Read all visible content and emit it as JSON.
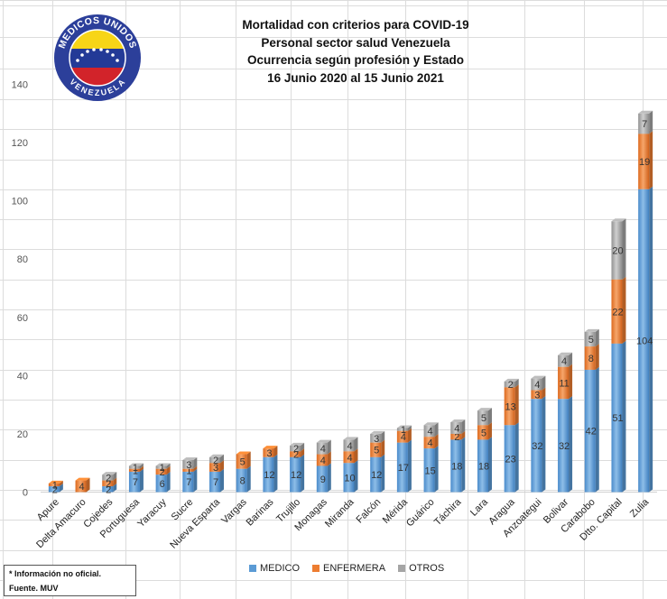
{
  "title_lines": [
    "Mortalidad con criterios para COVID-19",
    "Personal sector salud Venezuela",
    "Ocurrencia según profesión y Estado",
    "16 Junio 2020 al 15 Junio 2021"
  ],
  "logo": {
    "top_text": "MEDICOS UNIDOS",
    "bottom_text": "VENEZUELA"
  },
  "notes": {
    "line1": "* Información no oficial.",
    "line2": "Fuente. MUV"
  },
  "colors": {
    "medico": "#5B9BD5",
    "enfermera": "#ED7D31",
    "otros": "#A5A5A5"
  },
  "chart_data": {
    "type": "bar",
    "stacked": true,
    "categories": [
      "Apure",
      "Delta Amacuro",
      "Cojedes",
      "Portuguesa",
      "Yaracuy",
      "Sucre",
      "Nueva Esparta",
      "Vargas",
      "Barinas",
      "Trujillo",
      "Monagas",
      "Miranda",
      "Falcón",
      "Mérida",
      "Guárico",
      "Táchira",
      "Lara",
      "Aragua",
      "Anzoategui",
      "Bolivar",
      "Carabobo",
      "Dtto. Capital",
      "Zulia"
    ],
    "series": [
      {
        "name": "MEDICO",
        "values": [
          2,
          0,
          2,
          7,
          6,
          7,
          7,
          8,
          12,
          12,
          9,
          10,
          12,
          17,
          15,
          18,
          18,
          23,
          32,
          32,
          42,
          51,
          104
        ]
      },
      {
        "name": "ENFERMERA",
        "values": [
          1,
          4,
          2,
          1,
          2,
          1,
          3,
          5,
          3,
          2,
          4,
          4,
          5,
          4,
          4,
          2,
          5,
          13,
          3,
          11,
          8,
          22,
          19
        ]
      },
      {
        "name": "OTROS",
        "values": [
          0,
          0,
          2,
          1,
          1,
          3,
          2,
          0,
          0,
          2,
          4,
          4,
          3,
          1,
          4,
          4,
          5,
          2,
          4,
          4,
          5,
          20,
          7
        ]
      }
    ],
    "yticks": [
      0,
      20,
      40,
      60,
      80,
      100,
      120,
      140
    ],
    "ylim": [
      0,
      140
    ],
    "legend_position": "bottom",
    "grid": false
  }
}
